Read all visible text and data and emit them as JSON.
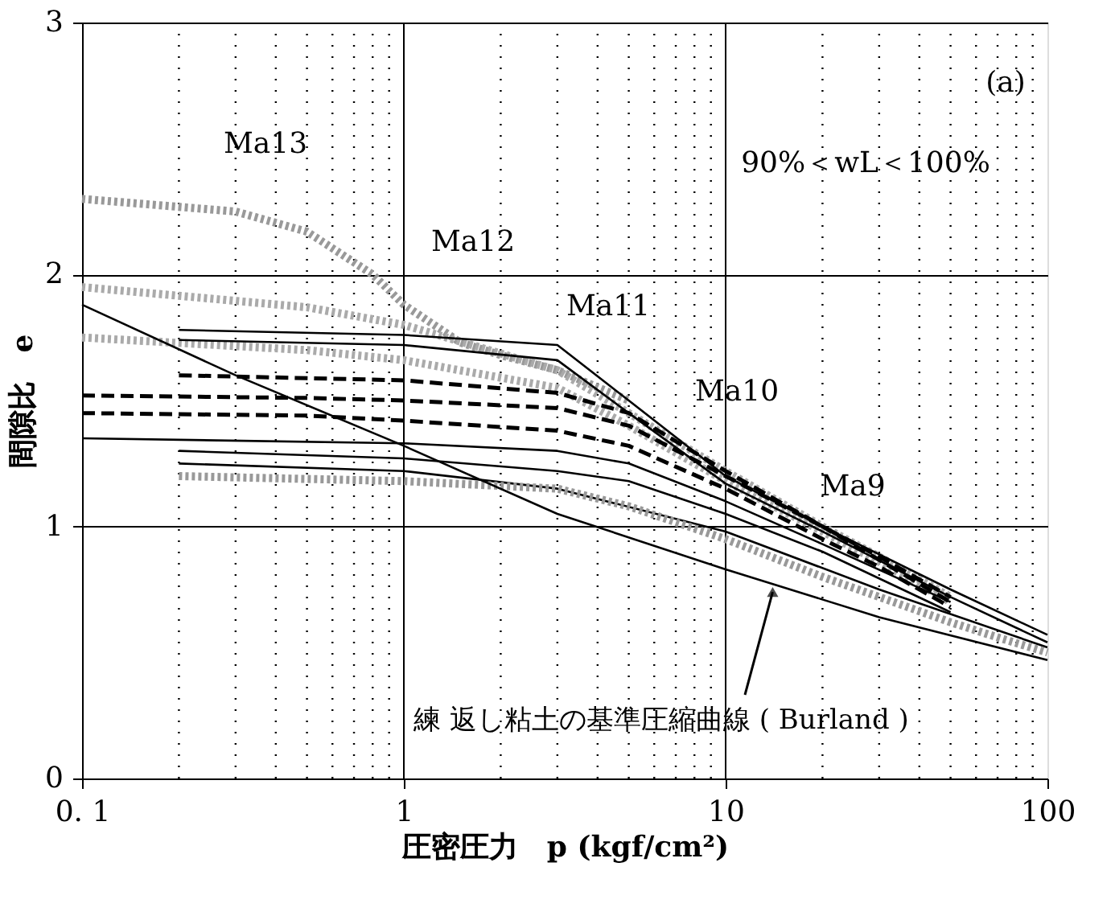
{
  "chart_data": {
    "type": "line",
    "xlabel": "圧密圧力　p (kgf/cm²)",
    "ylabel": "間隙比　e",
    "log": "x",
    "grid": true,
    "xlim": [
      0.1,
      100
    ],
    "xticks": [
      {
        "value": 0.1,
        "label": "0. 1"
      },
      1,
      10,
      100
    ],
    "ylim": [
      0,
      3
    ],
    "yticks": [
      0,
      1,
      2,
      3
    ],
    "series": [
      {
        "color": "#999999",
        "line_style": "dotted",
        "x": [
          0.1,
          0.3,
          0.5,
          0.8,
          1,
          1.5,
          2,
          3,
          5
        ],
        "values": [
          2.3,
          2.25,
          2.17,
          2.0,
          1.88,
          1.73,
          1.68,
          1.62,
          1.5
        ]
      },
      {
        "color": "#aaaaaa",
        "line_style": "dotted",
        "x": [
          0.1,
          0.5,
          1,
          3,
          5,
          10,
          20,
          30,
          50
        ],
        "values": [
          1.95,
          1.87,
          1.8,
          1.62,
          1.45,
          1.22,
          1.0,
          0.88,
          0.72
        ]
      },
      {
        "color": "#aaaaaa",
        "line_style": "dotted",
        "x": [
          0.1,
          0.5,
          1,
          3,
          5,
          10,
          20,
          30,
          50
        ],
        "values": [
          1.75,
          1.7,
          1.66,
          1.55,
          1.4,
          1.18,
          0.98,
          0.86,
          0.7
        ]
      },
      {
        "color": "#000000",
        "line_style": "solid",
        "x": [
          0.2,
          1,
          3,
          5,
          10,
          20,
          50,
          100
        ],
        "values": [
          1.78,
          1.76,
          1.72,
          1.5,
          1.2,
          1.0,
          0.75,
          0.57
        ]
      },
      {
        "color": "#000000",
        "line_style": "solid",
        "x": [
          0.2,
          1,
          3,
          5,
          10,
          20,
          50,
          100
        ],
        "values": [
          1.74,
          1.72,
          1.66,
          1.45,
          1.17,
          0.98,
          0.72,
          0.54
        ]
      },
      {
        "color": "#000000",
        "line_style": "dashed",
        "x": [
          0.1,
          0.5,
          1,
          3,
          5,
          10,
          20,
          30,
          50
        ],
        "values": [
          1.52,
          1.51,
          1.5,
          1.47,
          1.4,
          1.2,
          1.0,
          0.88,
          0.72
        ]
      },
      {
        "color": "#000000",
        "line_style": "dashed",
        "x": [
          0.1,
          0.5,
          1,
          3,
          5,
          10,
          20,
          30,
          50
        ],
        "values": [
          1.45,
          1.44,
          1.42,
          1.38,
          1.32,
          1.15,
          0.95,
          0.84,
          0.68
        ]
      },
      {
        "color": "#000000",
        "line_style": "dashed",
        "x": [
          0.2,
          1,
          3,
          5,
          10,
          20,
          50
        ],
        "values": [
          1.6,
          1.58,
          1.53,
          1.45,
          1.22,
          1.0,
          0.7
        ]
      },
      {
        "color": "#000000",
        "line_style": "solid",
        "x": [
          0.1,
          1,
          3,
          5,
          10,
          20,
          50
        ],
        "values": [
          1.35,
          1.33,
          1.3,
          1.25,
          1.1,
          0.93,
          0.7
        ]
      },
      {
        "color": "#000000",
        "line_style": "solid",
        "x": [
          0.2,
          1,
          3,
          5,
          10,
          20,
          50
        ],
        "values": [
          1.3,
          1.27,
          1.22,
          1.18,
          1.05,
          0.9,
          0.66
        ]
      },
      {
        "color": "#000000",
        "line_style": "solid",
        "x": [
          0.2,
          1,
          3,
          10,
          30,
          100
        ],
        "values": [
          1.25,
          1.22,
          1.15,
          0.98,
          0.75,
          0.52
        ]
      },
      {
        "color": "#999999",
        "line_style": "dotted",
        "x": [
          0.2,
          1,
          3,
          5,
          10,
          20,
          50,
          70,
          100
        ],
        "values": [
          1.2,
          1.18,
          1.15,
          1.08,
          0.95,
          0.8,
          0.62,
          0.56,
          0.5
        ]
      },
      {
        "color": "#000000",
        "line_style": "solid",
        "x": [
          0.1,
          0.3,
          1,
          3,
          10,
          30,
          100
        ],
        "values": [
          1.88,
          1.6,
          1.32,
          1.05,
          0.83,
          0.64,
          0.47
        ]
      }
    ],
    "annotations": [
      "(a)",
      "90%＜wL＜100%",
      "Ma13",
      "Ma12",
      "Ma11",
      "Ma10",
      "Ma9",
      {
        "text": "練 返し粘土の基準圧縮曲線 ( Burland )",
        "x": 14,
        "y": 0.74
      }
    ]
  }
}
